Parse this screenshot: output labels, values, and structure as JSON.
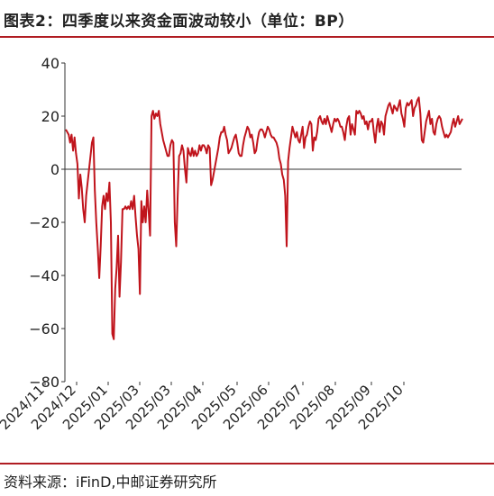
{
  "header": {
    "title": "图表2：四季度以来资金面波动较小（单位：BP）"
  },
  "footer": {
    "source": "资料来源：iFinD,中邮证券研究所"
  },
  "colors": {
    "line": "#c0141c",
    "rule": "#b01c22",
    "axis": "#333333"
  },
  "chart_data": {
    "type": "line",
    "title": "四季度以来资金面波动较小",
    "xlabel": "",
    "ylabel": "",
    "unit": "BP",
    "ylim": [
      -80,
      40
    ],
    "yticks": [
      40,
      20,
      0,
      -20,
      -40,
      -60,
      -80
    ],
    "grid": false,
    "legend": "none",
    "x_tick_labels": [
      "2024/11",
      "2024/12",
      "2025/01",
      "2025/03",
      "2025/03",
      "2025/04",
      "2025/05",
      "2025/06",
      "2025/07",
      "2025/08",
      "2025/09",
      "2025/10"
    ],
    "series": [
      {
        "name": "",
        "values": [
          15,
          14,
          13,
          10,
          13,
          7,
          12,
          6,
          2,
          -11,
          -2,
          -7,
          -15,
          -20,
          -10,
          -5,
          0,
          5,
          10,
          12,
          -8,
          -20,
          -30,
          -41,
          -29,
          -14,
          -10,
          -15,
          -9,
          -12,
          -5,
          -20,
          -62,
          -64,
          -45,
          -37,
          -25,
          -48,
          -35,
          -15,
          -15,
          -14,
          -15,
          -14,
          -15,
          -12,
          -15,
          -10,
          -18,
          -25,
          -30,
          -47,
          -12,
          -20,
          -14,
          -20,
          -8,
          -16,
          -25,
          20,
          22,
          19,
          21,
          20,
          22,
          17,
          14,
          11,
          9,
          7,
          5,
          5,
          9,
          11,
          10,
          -20,
          -29,
          -10,
          5,
          6,
          9,
          7,
          0,
          -5,
          8,
          6,
          5,
          8,
          5,
          7,
          5,
          6,
          9,
          7,
          9,
          9,
          8,
          6,
          9,
          8,
          -6,
          -4,
          -1,
          2,
          5,
          8,
          12,
          14,
          14,
          16,
          13,
          11,
          6,
          7,
          8,
          10,
          12,
          13,
          10,
          6,
          5,
          5,
          9,
          12,
          14,
          16,
          15,
          12,
          13,
          10,
          6,
          7,
          11,
          14,
          15,
          15,
          14,
          12,
          14,
          16,
          15,
          13,
          12,
          12,
          11,
          10,
          8,
          4,
          2,
          -2,
          -4,
          -10,
          -29,
          3,
          8,
          12,
          16,
          14,
          12,
          14,
          11,
          10,
          13,
          16,
          8,
          12,
          13,
          16,
          18,
          17,
          7,
          12,
          11,
          14,
          19,
          20,
          18,
          17,
          19,
          17,
          20,
          18,
          16,
          14,
          17,
          19,
          18,
          19,
          18,
          16,
          16,
          14,
          11,
          16,
          19,
          20,
          13,
          17,
          15,
          13,
          22,
          21,
          22,
          21,
          19,
          20,
          17,
          18,
          15,
          18,
          18,
          19,
          14,
          10,
          16,
          19,
          14,
          18,
          17,
          13,
          20,
          22,
          24,
          25,
          23,
          21,
          24,
          23,
          22,
          24,
          26,
          21,
          19,
          16,
          23,
          25,
          24,
          25,
          26,
          20,
          23,
          24,
          26,
          27,
          21,
          11,
          10,
          14,
          18,
          20,
          22,
          17,
          19,
          14,
          13,
          17,
          19,
          20,
          19,
          16,
          14,
          12,
          13,
          12,
          13,
          14,
          17,
          19,
          16,
          18,
          20,
          17,
          18,
          19
        ]
      }
    ]
  }
}
